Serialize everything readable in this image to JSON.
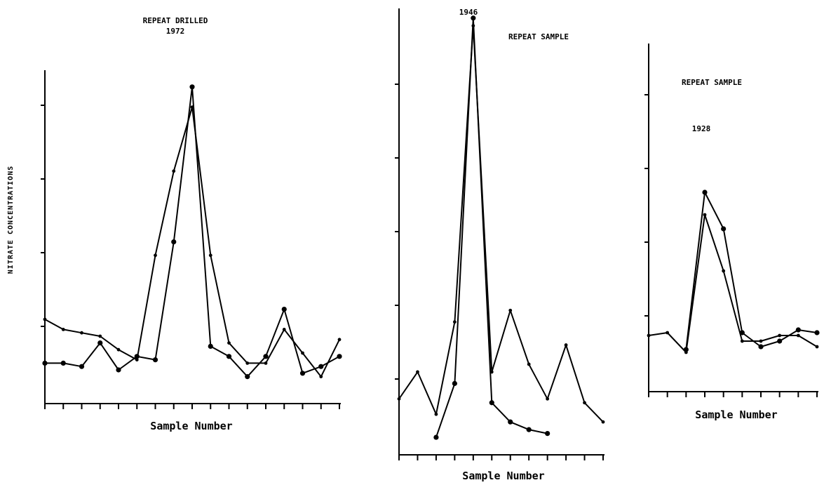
{
  "chart_data": [
    {
      "type": "line",
      "ylabel": "NITRATE CONCENTRATIONS",
      "xlabel": "Sample Number",
      "annotations": [
        "REPEAT DRILLED",
        "1972"
      ],
      "x_tick_count": 17,
      "y_tick_count": 4,
      "xlim": [
        0,
        16
      ],
      "ylim": [
        0,
        10
      ],
      "series": [
        {
          "marker": "small",
          "x": [
            0,
            1,
            2,
            3,
            4,
            5,
            6,
            7,
            8,
            9,
            10,
            11,
            12,
            13,
            14,
            15,
            16
          ],
          "values": [
            2.5,
            2.2,
            2.1,
            2.0,
            1.6,
            1.3,
            4.4,
            6.9,
            8.8,
            4.4,
            1.8,
            1.2,
            1.2,
            2.2,
            1.5,
            0.8,
            1.9
          ]
        },
        {
          "marker": "large",
          "x": [
            0,
            1,
            2,
            3,
            4,
            5,
            6,
            7,
            8,
            9,
            10,
            11,
            12,
            13,
            14,
            15,
            16
          ],
          "values": [
            1.2,
            1.2,
            1.1,
            1.8,
            1.0,
            1.4,
            1.3,
            4.8,
            9.4,
            1.7,
            1.4,
            0.8,
            1.4,
            2.8,
            0.9,
            1.1,
            1.4
          ]
        }
      ]
    },
    {
      "type": "line",
      "xlabel": "Sample Number",
      "annotations": [
        "1946",
        "REPEAT SAMPLE"
      ],
      "x_tick_count": 12,
      "y_tick_count": 5,
      "xlim": [
        0,
        11
      ],
      "ylim": [
        0,
        10
      ],
      "series": [
        {
          "marker": "small",
          "x": [
            0,
            1,
            2,
            3,
            4,
            5,
            6,
            7,
            8,
            9,
            10,
            11
          ],
          "values": [
            1.4,
            2.1,
            1.0,
            3.4,
            11.1,
            2.1,
            3.7,
            2.3,
            1.4,
            2.8,
            1.3,
            0.8
          ]
        },
        {
          "marker": "large",
          "x": [
            2,
            3,
            4,
            5,
            6,
            7,
            8
          ],
          "values": [
            0.4,
            1.8,
            11.3,
            1.3,
            0.8,
            0.6,
            0.5
          ]
        }
      ]
    },
    {
      "type": "line",
      "xlabel": "Sample Number",
      "annotations": [
        "REPEAT SAMPLE",
        "1928"
      ],
      "x_tick_count": 10,
      "y_tick_count": 4,
      "xlim": [
        0,
        9
      ],
      "ylim": [
        0,
        10
      ],
      "series": [
        {
          "marker": "small",
          "x": [
            0,
            1,
            2,
            3,
            4,
            5,
            6,
            7,
            8,
            9
          ],
          "values": [
            2.0,
            2.1,
            1.4,
            6.3,
            4.3,
            1.8,
            1.8,
            2.0,
            2.0,
            1.6
          ]
        },
        {
          "marker": "large",
          "x": [
            2,
            3,
            4,
            5,
            6,
            7,
            8,
            9
          ],
          "values": [
            1.5,
            7.1,
            5.8,
            2.1,
            1.6,
            1.8,
            2.2,
            2.1
          ]
        }
      ]
    }
  ]
}
